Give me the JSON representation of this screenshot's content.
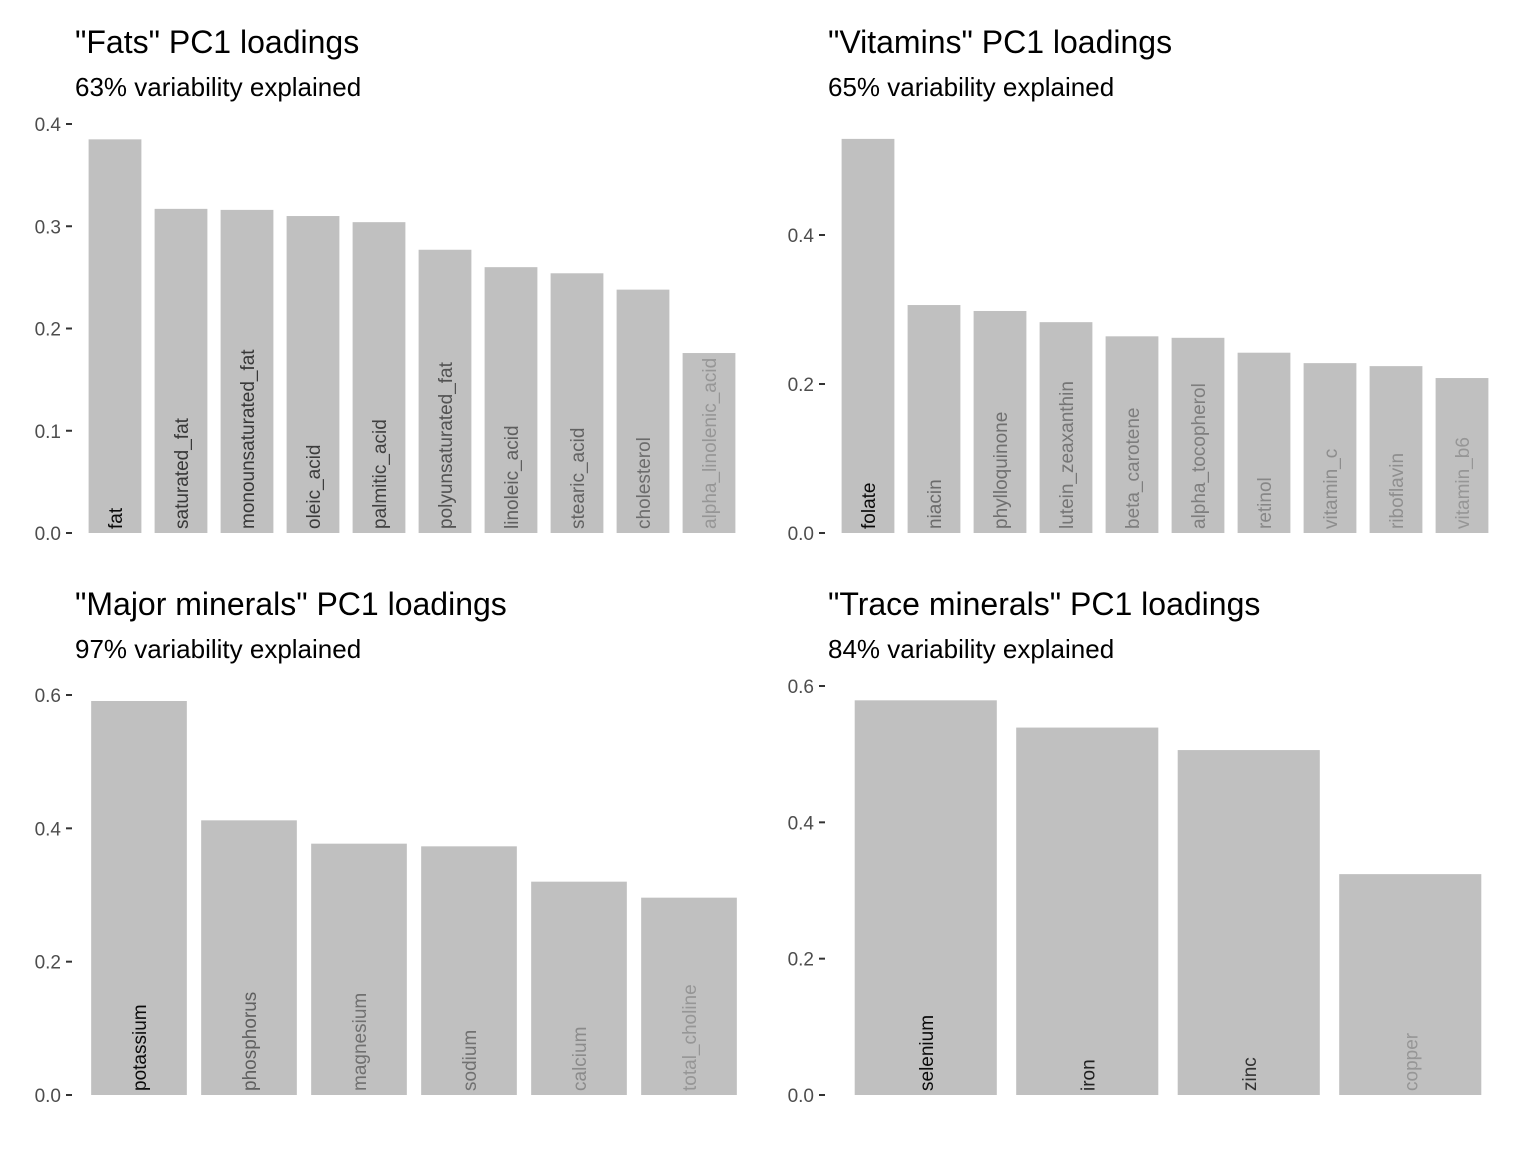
{
  "chart_data": [
    {
      "type": "bar",
      "title": "\"Fats\" PC1 loadings",
      "subtitle": "63% variability explained",
      "xlabel": "",
      "ylabel": "",
      "ylim": [
        0,
        0.4
      ],
      "yticks": [
        0.0,
        0.1,
        0.2,
        0.3,
        0.4
      ],
      "ytick_labels": [
        "0.0",
        "0.1",
        "0.2",
        "0.3",
        "0.4"
      ],
      "grid": false,
      "bar_color": "#c0c0c0",
      "label_placement": "inside-bar-bottom-rotated",
      "categories": [
        "fat",
        "saturated_fat",
        "monounsaturated_fat",
        "oleic_acid",
        "palmitic_acid",
        "polyunsaturated_fat",
        "linoleic_acid",
        "stearic_acid",
        "cholesterol",
        "alpha_linolenic_acid"
      ],
      "values": [
        0.385,
        0.317,
        0.316,
        0.31,
        0.304,
        0.277,
        0.26,
        0.254,
        0.238,
        0.176
      ]
    },
    {
      "type": "bar",
      "title": "\"Vitamins\" PC1 loadings",
      "subtitle": "65% variability explained",
      "xlabel": "",
      "ylabel": "",
      "ylim": [
        0,
        0.53
      ],
      "yticks": [
        0.0,
        0.2,
        0.4
      ],
      "ytick_labels": [
        "0.0",
        "0.2",
        "0.4"
      ],
      "grid": false,
      "bar_color": "#c0c0c0",
      "label_placement": "inside-bar-bottom-rotated",
      "categories": [
        "folate",
        "niacin",
        "phylloquinone",
        "lutein_zeaxanthin",
        "beta_carotene",
        "alpha_tocopherol",
        "retinol",
        "vitamin_c",
        "riboflavin",
        "vitamin_b6"
      ],
      "values": [
        0.529,
        0.306,
        0.298,
        0.283,
        0.264,
        0.262,
        0.242,
        0.228,
        0.224,
        0.208
      ]
    },
    {
      "type": "bar",
      "title": "\"Major minerals\" PC1 loadings",
      "subtitle": "97% variability explained",
      "xlabel": "",
      "ylabel": "",
      "ylim": [
        0,
        0.6
      ],
      "yticks": [
        0.0,
        0.2,
        0.4,
        0.6
      ],
      "ytick_labels": [
        "0.0",
        "0.2",
        "0.4",
        "0.6"
      ],
      "grid": false,
      "bar_color": "#c0c0c0",
      "label_placement": "inside-bar-bottom-rotated",
      "categories": [
        "potassium",
        "phosphorus",
        "magnesium",
        "sodium",
        "calcium",
        "total_choline"
      ],
      "values": [
        0.591,
        0.412,
        0.377,
        0.373,
        0.32,
        0.296
      ]
    },
    {
      "type": "bar",
      "title": "\"Trace minerals\" PC1 loadings",
      "subtitle": "84% variability explained",
      "xlabel": "",
      "ylabel": "",
      "ylim": [
        0,
        0.6
      ],
      "yticks": [
        0.0,
        0.2,
        0.4,
        0.6
      ],
      "ytick_labels": [
        "0.0",
        "0.2",
        "0.4",
        "0.6"
      ],
      "grid": false,
      "bar_color": "#c0c0c0",
      "label_placement": "inside-bar-bottom-rotated",
      "categories": [
        "selenium",
        "iron",
        "zinc",
        "copper"
      ],
      "values": [
        0.579,
        0.539,
        0.506,
        0.324
      ]
    }
  ]
}
